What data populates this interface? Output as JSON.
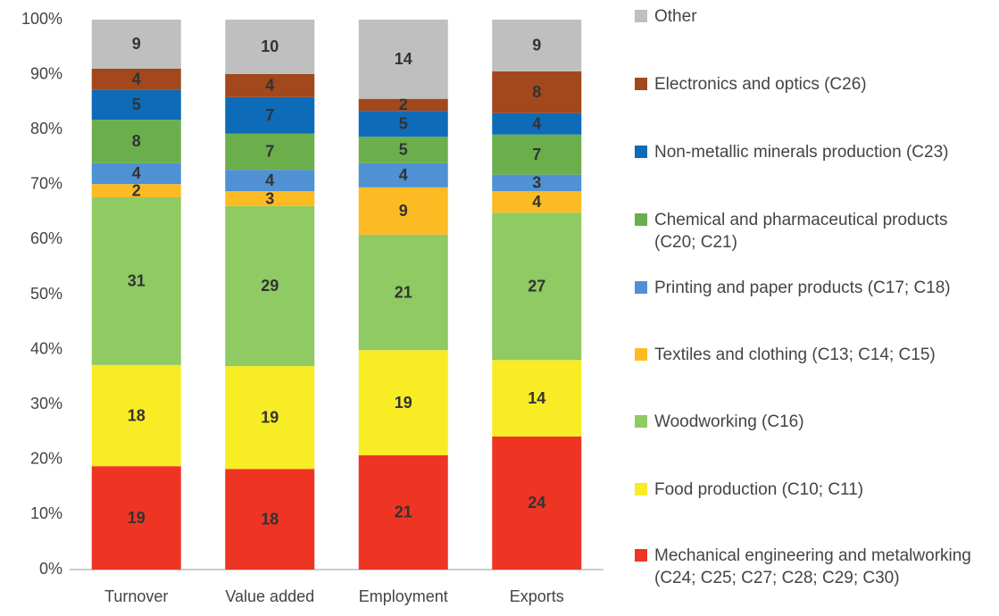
{
  "chart_data": {
    "type": "stacked_bar",
    "categories": [
      "Turnover",
      "Value added",
      "Employment",
      "Exports"
    ],
    "ylim": [
      0,
      100
    ],
    "yticks": [
      {
        "value": 0,
        "label": "0%"
      },
      {
        "value": 10,
        "label": "10%"
      },
      {
        "value": 20,
        "label": "20%"
      },
      {
        "value": 30,
        "label": "30%"
      },
      {
        "value": 40,
        "label": "40%"
      },
      {
        "value": 50,
        "label": "50%"
      },
      {
        "value": 60,
        "label": "60%"
      },
      {
        "value": 70,
        "label": "70%"
      },
      {
        "value": 80,
        "label": "80%"
      },
      {
        "value": 90,
        "label": "90%"
      },
      {
        "value": 100,
        "label": "100%"
      }
    ],
    "grid": false,
    "legend": "right",
    "series": [
      {
        "name": "Mechanical engineering and metalworking (C24; C25; C27; C28; C29; C30)",
        "color": "#ee3524",
        "values": [
          18.8,
          18.3,
          20.8,
          24.2
        ],
        "value_labels": [
          "19",
          "18",
          "21",
          "24"
        ]
      },
      {
        "name": "Food production (C10; C11)",
        "color": "#f8ec25",
        "values": [
          18.4,
          18.7,
          19.1,
          13.9
        ],
        "value_labels": [
          "18",
          "19",
          "19",
          "14"
        ]
      },
      {
        "name": "Woodworking (C16)",
        "color": "#8fca62",
        "values": [
          30.5,
          29.1,
          21.0,
          26.8
        ],
        "value_labels": [
          "31",
          "29",
          "21",
          "27"
        ]
      },
      {
        "name": "Textiles and clothing (C13; C14; C15)",
        "color": "#fcbb22",
        "values": [
          2.4,
          2.7,
          8.6,
          3.9
        ],
        "value_labels": [
          "2",
          "3",
          "9",
          "4"
        ]
      },
      {
        "name": "Printing and paper products (C17; C18)",
        "color": "#4f91d3",
        "values": [
          3.8,
          3.9,
          4.4,
          3.0
        ],
        "value_labels": [
          "4",
          "4",
          "4",
          "3"
        ]
      },
      {
        "name": "Chemical and pharmaceutical products (C20; C21)",
        "color": "#6aaf4c",
        "values": [
          7.9,
          6.6,
          4.8,
          7.3
        ],
        "value_labels": [
          "8",
          "7",
          "5",
          "7"
        ]
      },
      {
        "name": "Non-metallic minerals production (C23)",
        "color": "#0e6bb8",
        "values": [
          5.4,
          6.6,
          4.7,
          3.9
        ],
        "value_labels": [
          "5",
          "7",
          "5",
          "4"
        ]
      },
      {
        "name": "Electronics and optics (C26)",
        "color": "#a2481c",
        "values": [
          3.9,
          4.2,
          2.2,
          7.6
        ],
        "value_labels": [
          "4",
          "4",
          "2",
          "8"
        ]
      },
      {
        "name": "Other",
        "color": "#bfbfbf",
        "values": [
          8.9,
          9.9,
          14.4,
          9.4
        ],
        "value_labels": [
          "9",
          "10",
          "14",
          "9"
        ]
      }
    ]
  }
}
